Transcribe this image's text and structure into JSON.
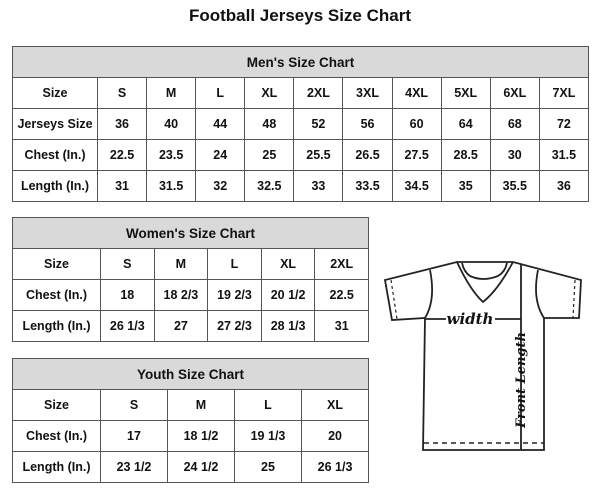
{
  "title": "Football Jerseys Size Chart",
  "men": {
    "heading": "Men's Size Chart",
    "rows": [
      [
        "Size",
        "S",
        "M",
        "L",
        "XL",
        "2XL",
        "3XL",
        "4XL",
        "5XL",
        "6XL",
        "7XL"
      ],
      [
        "Jerseys Size",
        "36",
        "40",
        "44",
        "48",
        "52",
        "56",
        "60",
        "64",
        "68",
        "72"
      ],
      [
        "Chest (In.)",
        "22.5",
        "23.5",
        "24",
        "25",
        "25.5",
        "26.5",
        "27.5",
        "28.5",
        "30",
        "31.5"
      ],
      [
        "Length (In.)",
        "31",
        "31.5",
        "32",
        "32.5",
        "33",
        "33.5",
        "34.5",
        "35",
        "35.5",
        "36"
      ]
    ]
  },
  "women": {
    "heading": "Women's Size Chart",
    "rows": [
      [
        "Size",
        "S",
        "M",
        "L",
        "XL",
        "2XL"
      ],
      [
        "Chest (In.)",
        "18",
        "18 2/3",
        "19 2/3",
        "20 1/2",
        "22.5"
      ],
      [
        "Length (In.)",
        "26 1/3",
        "27",
        "27 2/3",
        "28 1/3",
        "31"
      ]
    ]
  },
  "youth": {
    "heading": "Youth Size Chart",
    "rows": [
      [
        "Size",
        "S",
        "M",
        "L",
        "XL"
      ],
      [
        "Chest (In.)",
        "17",
        "18 1/2",
        "19 1/3",
        "20"
      ],
      [
        "Length (In.)",
        "23 1/2",
        "24 1/2",
        "25",
        "26 1/3"
      ]
    ]
  },
  "diagram": {
    "width_label": "width",
    "length_label": "Front Length"
  },
  "colors": {
    "header_bg": "#d9d9d9",
    "border": "#555555"
  }
}
